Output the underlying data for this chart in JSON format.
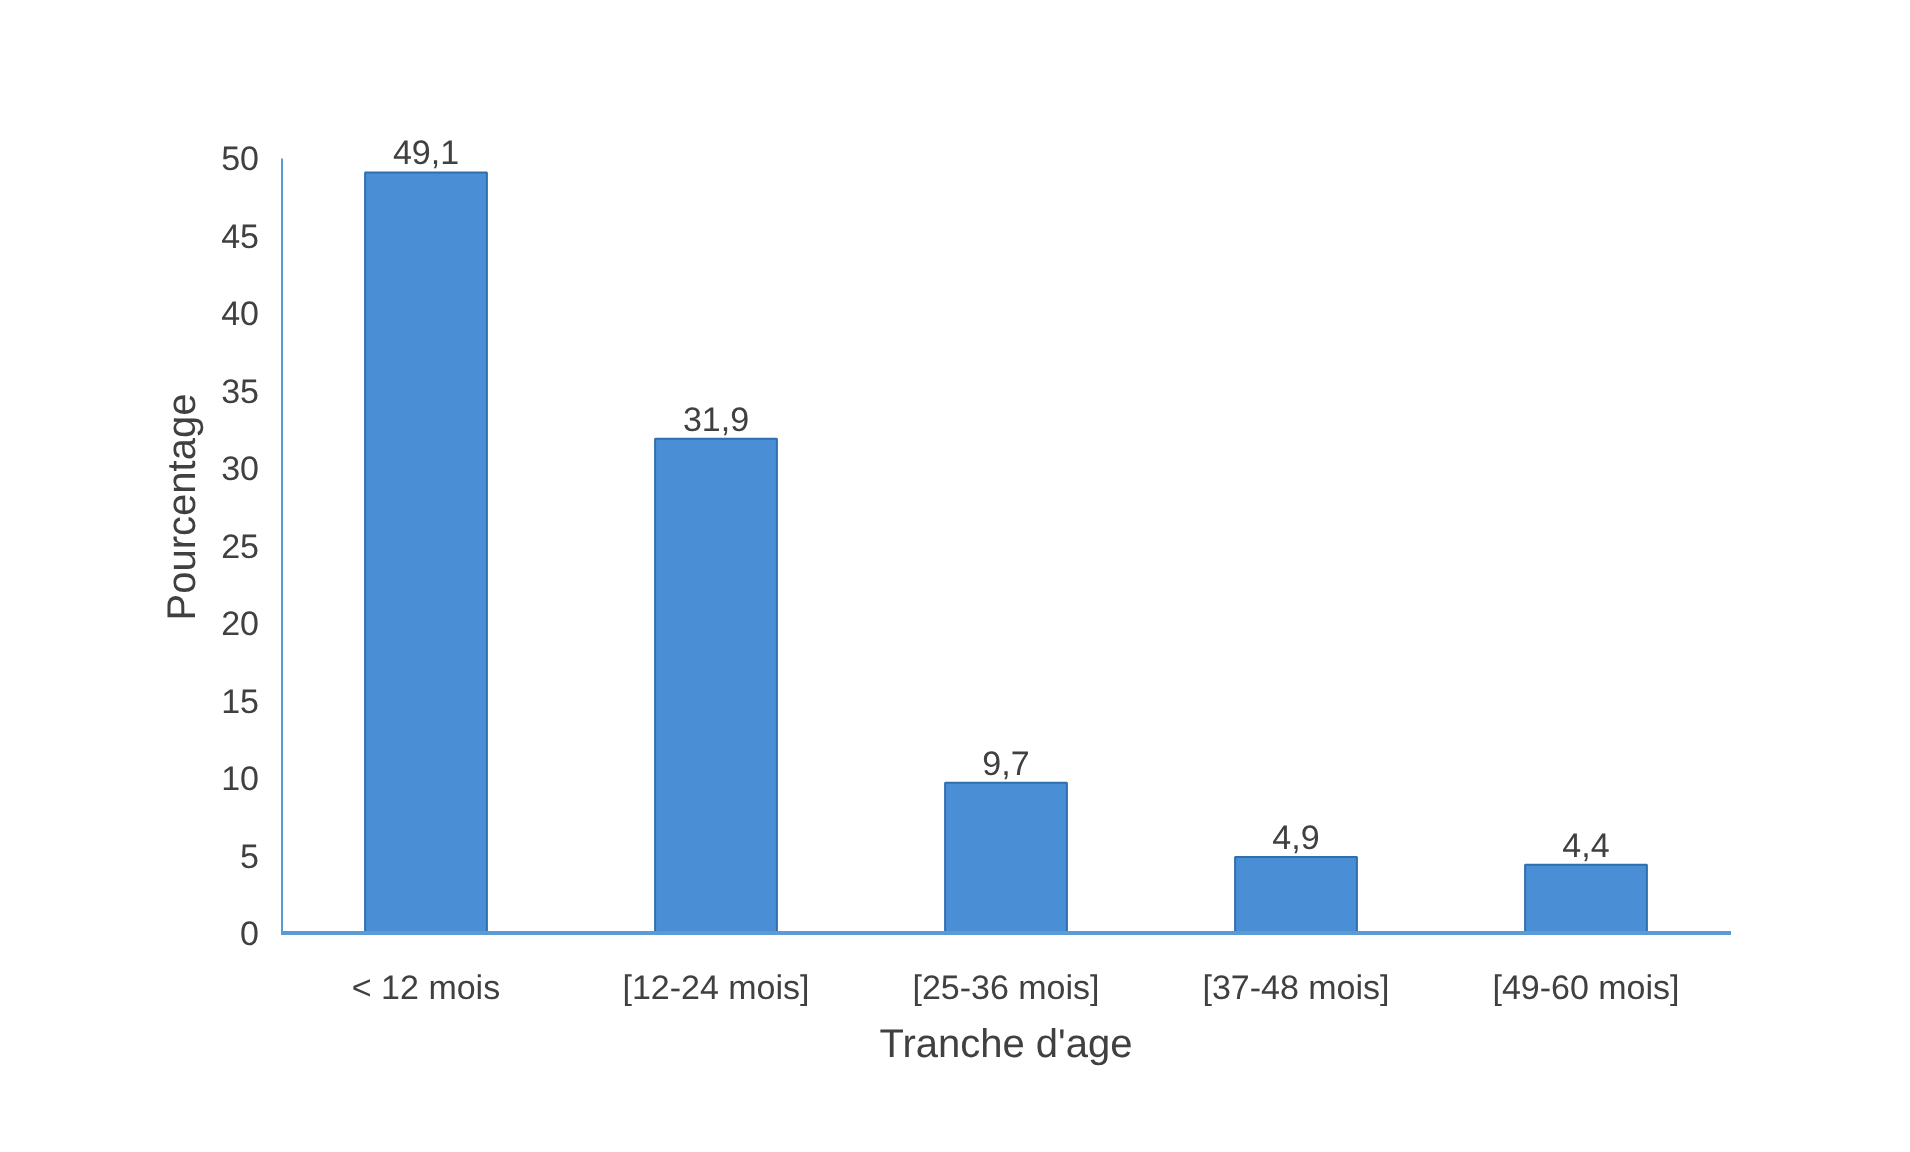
{
  "chart_data": {
    "type": "bar",
    "xlabel": "Tranche d'age",
    "ylabel": "Pourcentage",
    "categories": [
      "< 12 mois",
      "[12-24 mois]",
      "[25-36 mois]",
      "[37-48 mois]",
      "[49-60 mois]"
    ],
    "values": [
      49.1,
      31.9,
      9.7,
      4.9,
      4.4
    ],
    "value_labels": [
      "49,1",
      "31,9",
      "9,7",
      "4,9",
      "4,4"
    ],
    "color": "#4a8fd6",
    "ylim": [
      0,
      50
    ],
    "yticks": [
      0,
      5,
      10,
      15,
      20,
      25,
      30,
      35,
      40,
      45,
      50
    ],
    "grid": false
  }
}
